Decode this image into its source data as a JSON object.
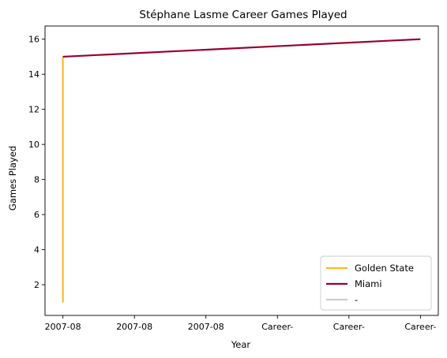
{
  "chart_data": {
    "type": "line",
    "title": "Stéphane Lasme Career Games Played",
    "xlabel": "Year",
    "ylabel": "Games Played",
    "x_tick_labels": [
      "2007-08",
      "2007-08",
      "2007-08",
      "Career-",
      "Career-",
      "Career-"
    ],
    "y_ticks": [
      2,
      4,
      6,
      8,
      10,
      12,
      14,
      16
    ],
    "ylim": [
      0.25,
      16.75
    ],
    "xlim": [
      -0.25,
      5.25
    ],
    "grid": false,
    "legend_position": "bottom-right",
    "series": [
      {
        "name": "Golden State",
        "color": "#FDB927",
        "x": [
          0,
          0
        ],
        "y": [
          1,
          15
        ]
      },
      {
        "name": "Miami",
        "color": "#98002E",
        "x": [
          0,
          5
        ],
        "y": [
          15,
          16
        ]
      },
      {
        "name": "-",
        "color": "#C4CED4",
        "x": [],
        "y": []
      }
    ]
  }
}
